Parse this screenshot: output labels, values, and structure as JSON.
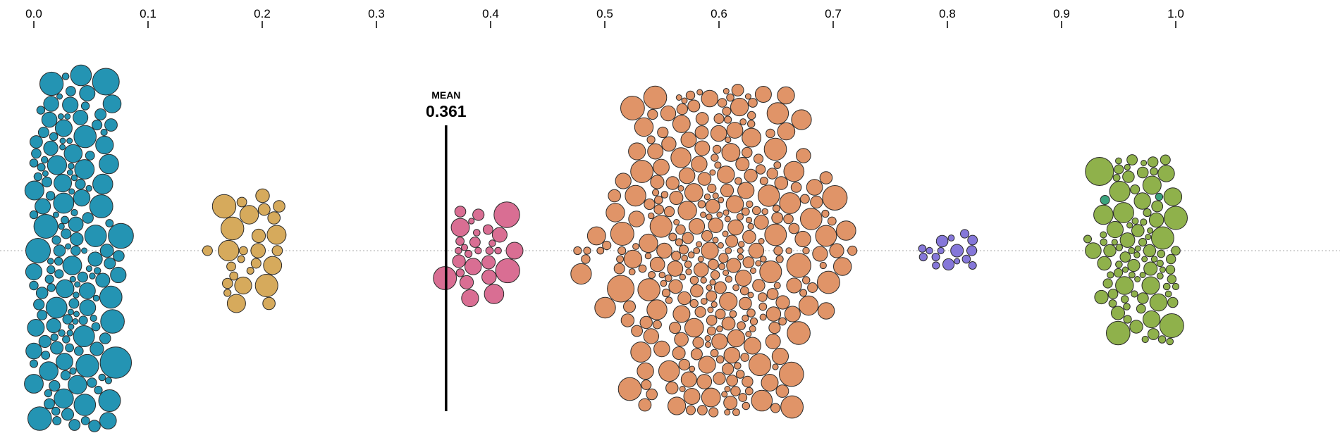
{
  "chart_data": {
    "type": "scatter",
    "subtype": "beeswarm",
    "xlim": [
      0.0,
      1.0
    ],
    "x_ticks": [
      "0.0",
      "0.1",
      "0.2",
      "0.3",
      "0.4",
      "0.5",
      "0.6",
      "0.7",
      "0.8",
      "0.9",
      "1.0"
    ],
    "x_tick_values": [
      0.0,
      0.1,
      0.2,
      0.3,
      0.4,
      0.5,
      0.6,
      0.7,
      0.8,
      0.9,
      1.0
    ],
    "x_axis_position": "top",
    "baseline": "dotted",
    "mean": {
      "label": "MEAN",
      "value_label": "0.361",
      "value": 0.361
    },
    "series": [
      {
        "color": "#2494b3",
        "x_range": [
          0.0,
          0.14
        ],
        "center": 0.03,
        "count": 260,
        "sizes": "small-to-large, densest near 0.0"
      },
      {
        "color": "#d6aa5c",
        "x_range": [
          0.11,
          0.25
        ],
        "center": 0.19,
        "count": 35,
        "sizes": "small-to-medium"
      },
      {
        "color": "#d96e93",
        "x_range": [
          0.33,
          0.44
        ],
        "center": 0.39,
        "count": 30,
        "sizes": "small-to-medium"
      },
      {
        "color": "#e09468",
        "x_range": [
          0.44,
          0.78
        ],
        "center": 0.6,
        "count": 420,
        "sizes": "small-to-large, dense core 0.55–0.70"
      },
      {
        "color": "#8577d9",
        "x_range": [
          0.77,
          0.87
        ],
        "center": 0.8,
        "count": 25,
        "sizes": "small"
      },
      {
        "color": "#8fb14b",
        "x_range": [
          0.86,
          1.0
        ],
        "center": 0.97,
        "count": 180,
        "sizes": "small-to-large"
      },
      {
        "color": "#3aa37d",
        "x_range": [
          0.91,
          1.0
        ],
        "center": 0.96,
        "count": 25,
        "sizes": "small-to-medium"
      }
    ]
  }
}
